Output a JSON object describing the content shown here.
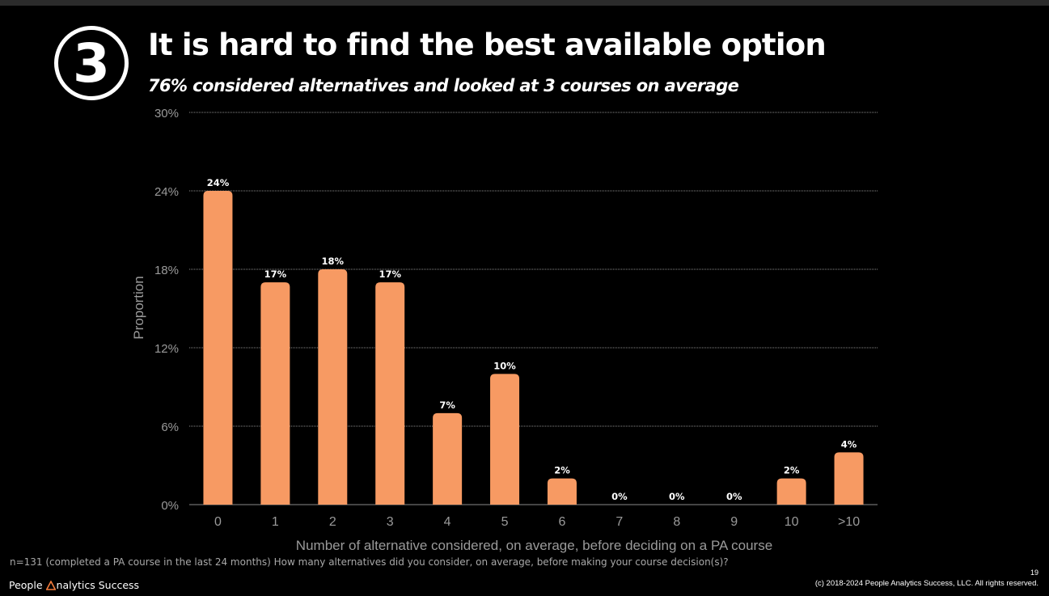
{
  "slide": {
    "number_badge": "3",
    "title": "It is hard to find the best available option",
    "subtitle": "76% considered alternatives and looked at 3 courses on average",
    "footnote": "n=131 (completed a PA course in the last 24 months) How many alternatives did you consider, on average, before making your course decision(s)?",
    "brand_left": "People",
    "brand_right": "nalytics Success",
    "page_number": "19",
    "copyright": "(c) 2018-2024 People Analytics Success, LLC. All rights reserved."
  },
  "colors": {
    "bar": "#f79a63",
    "grid": "#8a8a8a",
    "axis_text": "#9a9a9a",
    "brand_accent": "#f47c3c"
  },
  "chart_data": {
    "type": "bar",
    "categories": [
      "0",
      "1",
      "2",
      "3",
      "4",
      "5",
      "6",
      "7",
      "8",
      "9",
      "10",
      ">10"
    ],
    "values": [
      24,
      17,
      18,
      17,
      7,
      10,
      2,
      0,
      0,
      0,
      2,
      4
    ],
    "data_labels": [
      "24%",
      "17%",
      "18%",
      "17%",
      "7%",
      "10%",
      "2%",
      "0%",
      "0%",
      "0%",
      "2%",
      "4%"
    ],
    "xlabel": "Number of alternative considered, on average, before deciding on a PA course",
    "ylabel": "Proportion",
    "ylim": [
      0,
      30
    ],
    "yticks": [
      0,
      6,
      12,
      18,
      24,
      30
    ],
    "ytick_labels": [
      "0%",
      "6%",
      "12%",
      "18%",
      "24%",
      "30%"
    ],
    "grid": true
  }
}
